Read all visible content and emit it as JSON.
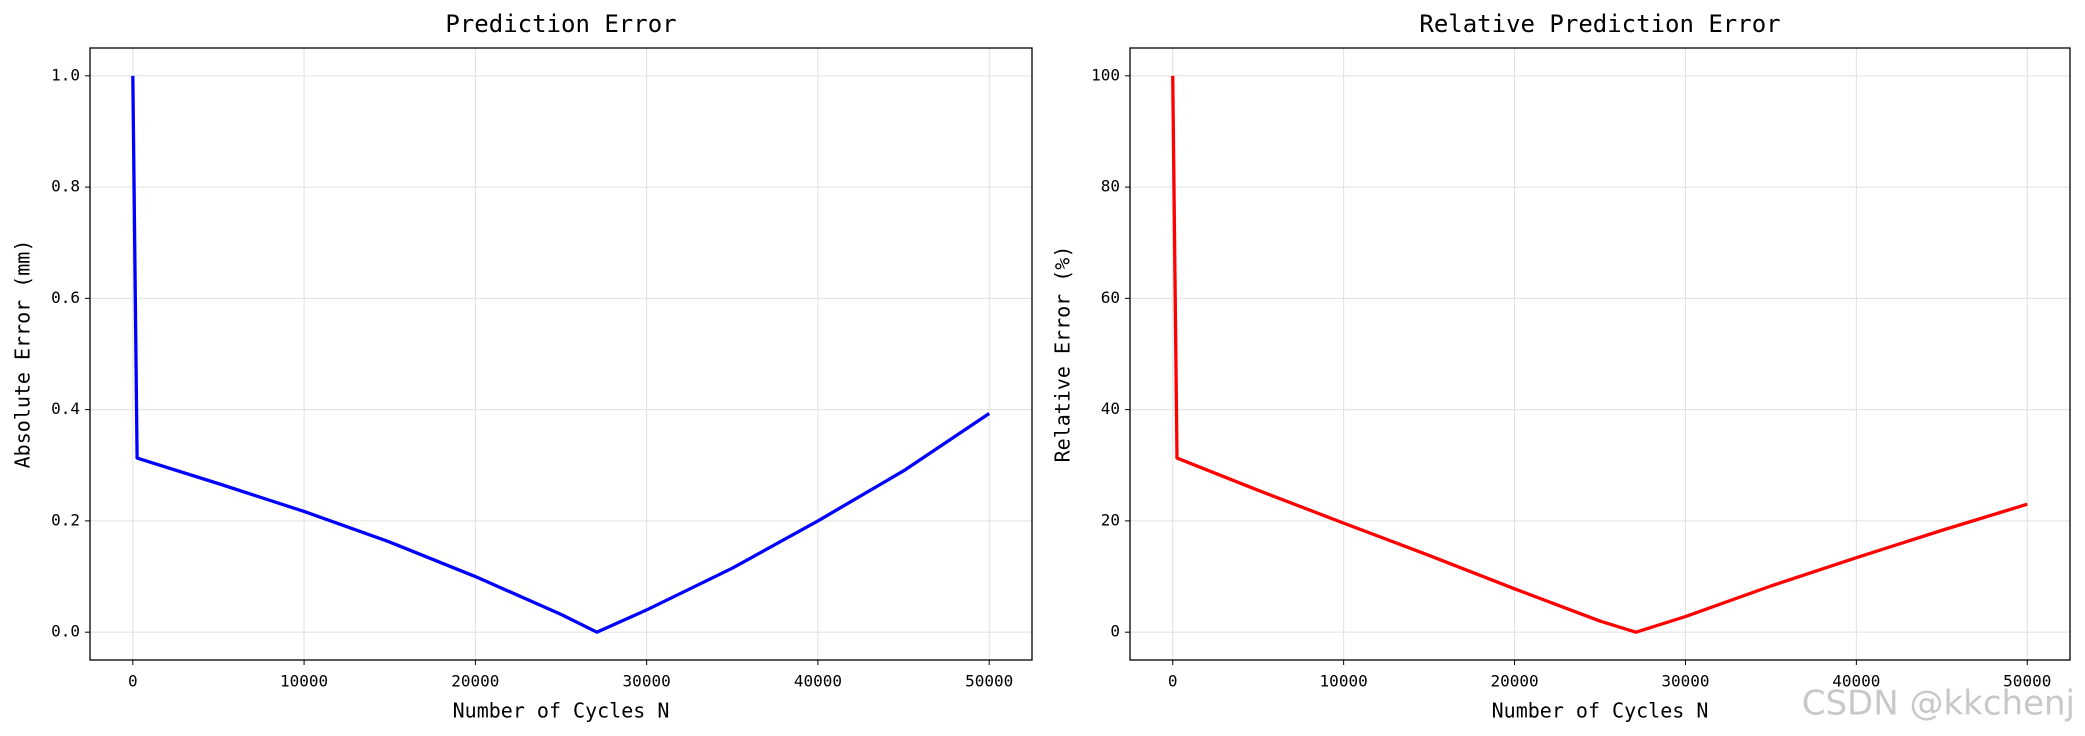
{
  "chart_data": [
    {
      "type": "line",
      "title": "Prediction Error",
      "xlabel": "Number of Cycles N",
      "ylabel": "Absolute Error (mm)",
      "x": [
        0,
        250,
        5000,
        10000,
        15000,
        20000,
        25000,
        27100,
        30000,
        35000,
        40000,
        45000,
        50000
      ],
      "series": [
        {
          "color": "#0000ff",
          "values": [
            1.0,
            0.313,
            0.267,
            0.217,
            0.162,
            0.1,
            0.032,
            0.0,
            0.04,
            0.115,
            0.2,
            0.29,
            0.393
          ]
        }
      ],
      "xlim": [
        -2500,
        52500
      ],
      "xticks": [
        0,
        10000,
        20000,
        30000,
        40000,
        50000
      ],
      "ylim": [
        -0.05,
        1.05
      ],
      "yticks": [
        {
          "value": 0,
          "label": "0.0"
        },
        0.2,
        0.4,
        0.6,
        0.8,
        {
          "value": 1,
          "label": "1.0"
        }
      ],
      "grid": true
    },
    {
      "type": "line",
      "title": "Relative Prediction Error",
      "xlabel": "Number of Cycles N",
      "ylabel": "Relative Error (%)",
      "x": [
        0,
        250,
        5000,
        10000,
        15000,
        20000,
        25000,
        27100,
        30000,
        35000,
        40000,
        45000,
        50000
      ],
      "series": [
        {
          "color": "#ff0000",
          "values": [
            100,
            31.3,
            25.5,
            19.6,
            13.8,
            7.8,
            2.0,
            0,
            2.8,
            8.3,
            13.4,
            18.3,
            23
          ]
        }
      ],
      "xlim": [
        -2500,
        52500
      ],
      "xticks": [
        0,
        10000,
        20000,
        30000,
        40000,
        50000
      ],
      "ylim": [
        -5,
        105
      ],
      "yticks": [
        0,
        20,
        40,
        60,
        80,
        100
      ],
      "grid": true
    }
  ],
  "watermark": "CSDN @kkchenj"
}
